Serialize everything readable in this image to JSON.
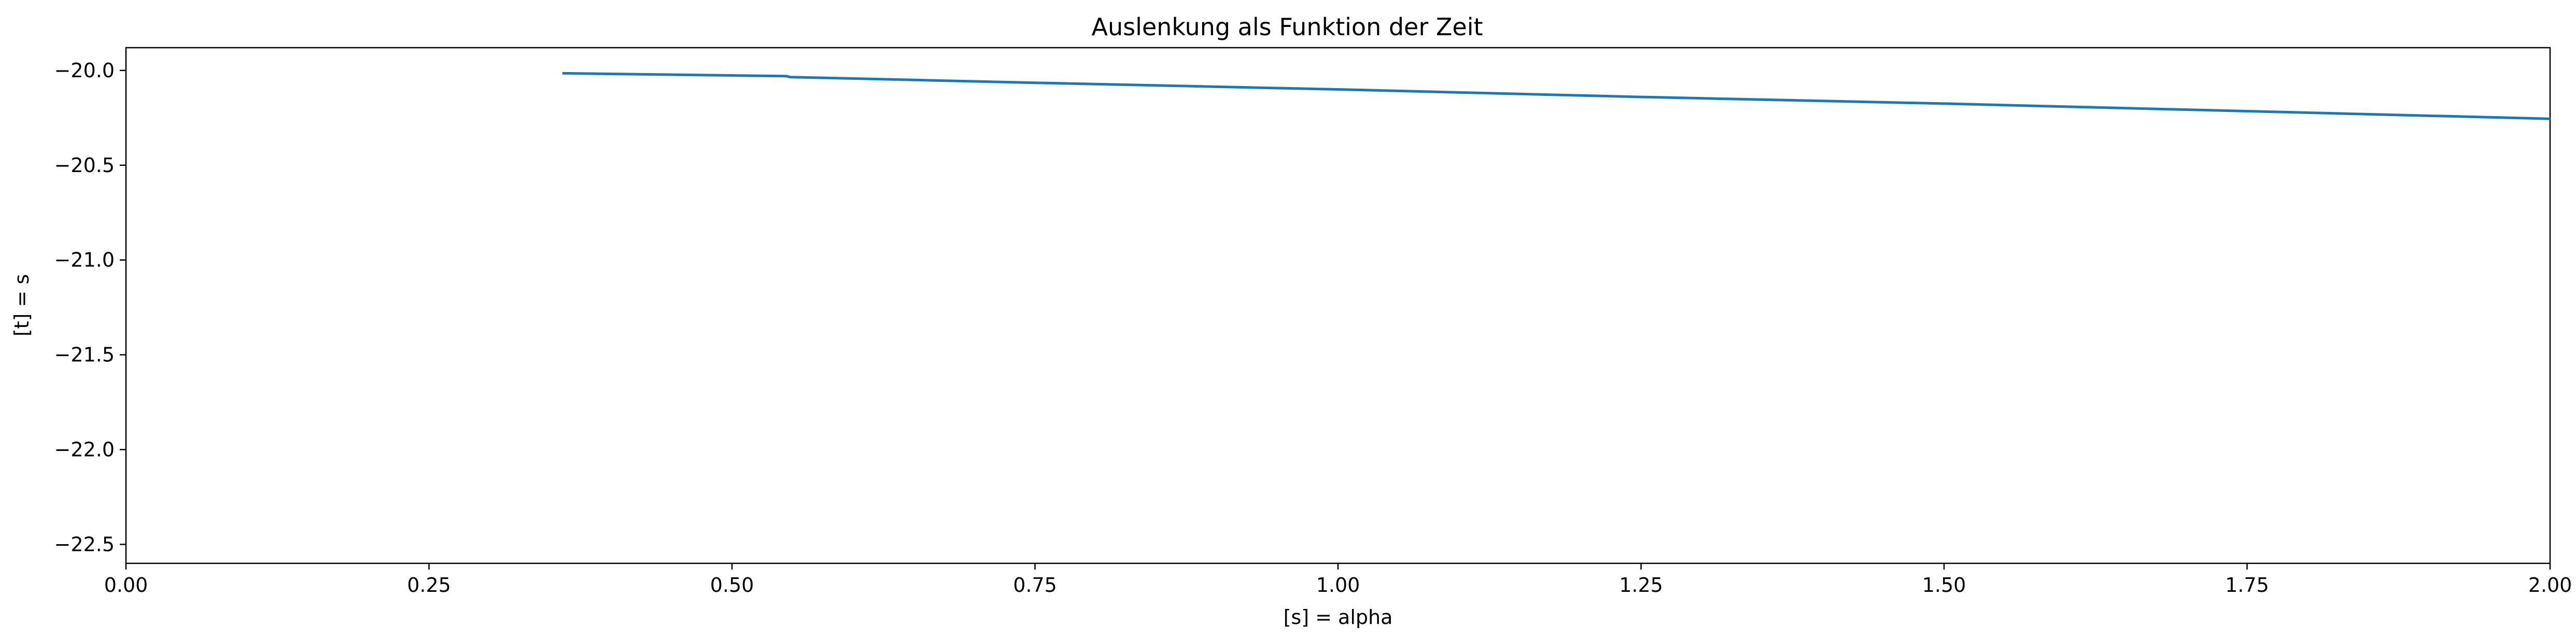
{
  "chart_data": {
    "type": "line",
    "title": "Auslenkung als Funktion der Zeit",
    "xlabel": "[s] = alpha",
    "ylabel": "[t] = s",
    "xlim": [
      0,
      2
    ],
    "ylim": [
      -22.6,
      -19.88
    ],
    "xticks": [
      {
        "value": 0.0,
        "label": "0.00"
      },
      {
        "value": 0.25,
        "label": "0.25"
      },
      {
        "value": 0.5,
        "label": "0.50"
      },
      {
        "value": 0.75,
        "label": "0.75"
      },
      {
        "value": 1.0,
        "label": "1.00"
      },
      {
        "value": 1.25,
        "label": "1.25"
      },
      {
        "value": 1.5,
        "label": "1.50"
      },
      {
        "value": 1.75,
        "label": "1.75"
      },
      {
        "value": 2.0,
        "label": "2.00"
      }
    ],
    "yticks": [
      {
        "value": -20.0,
        "label": "−20.0"
      },
      {
        "value": -20.5,
        "label": "−20.5"
      },
      {
        "value": -21.0,
        "label": "−21.0"
      },
      {
        "value": -21.5,
        "label": "−21.5"
      },
      {
        "value": -22.0,
        "label": "−22.0"
      },
      {
        "value": -22.5,
        "label": "−22.5"
      }
    ],
    "grid": false,
    "series": [
      {
        "color": "#1f77b4",
        "x": [
          0.36,
          0.545,
          0.548,
          0.75,
          1.0,
          1.25,
          1.5,
          1.75,
          2.0
        ],
        "y": [
          -20.015,
          -20.03,
          -20.035,
          -20.065,
          -20.1,
          -20.14,
          -20.175,
          -20.215,
          -20.255
        ]
      }
    ]
  }
}
